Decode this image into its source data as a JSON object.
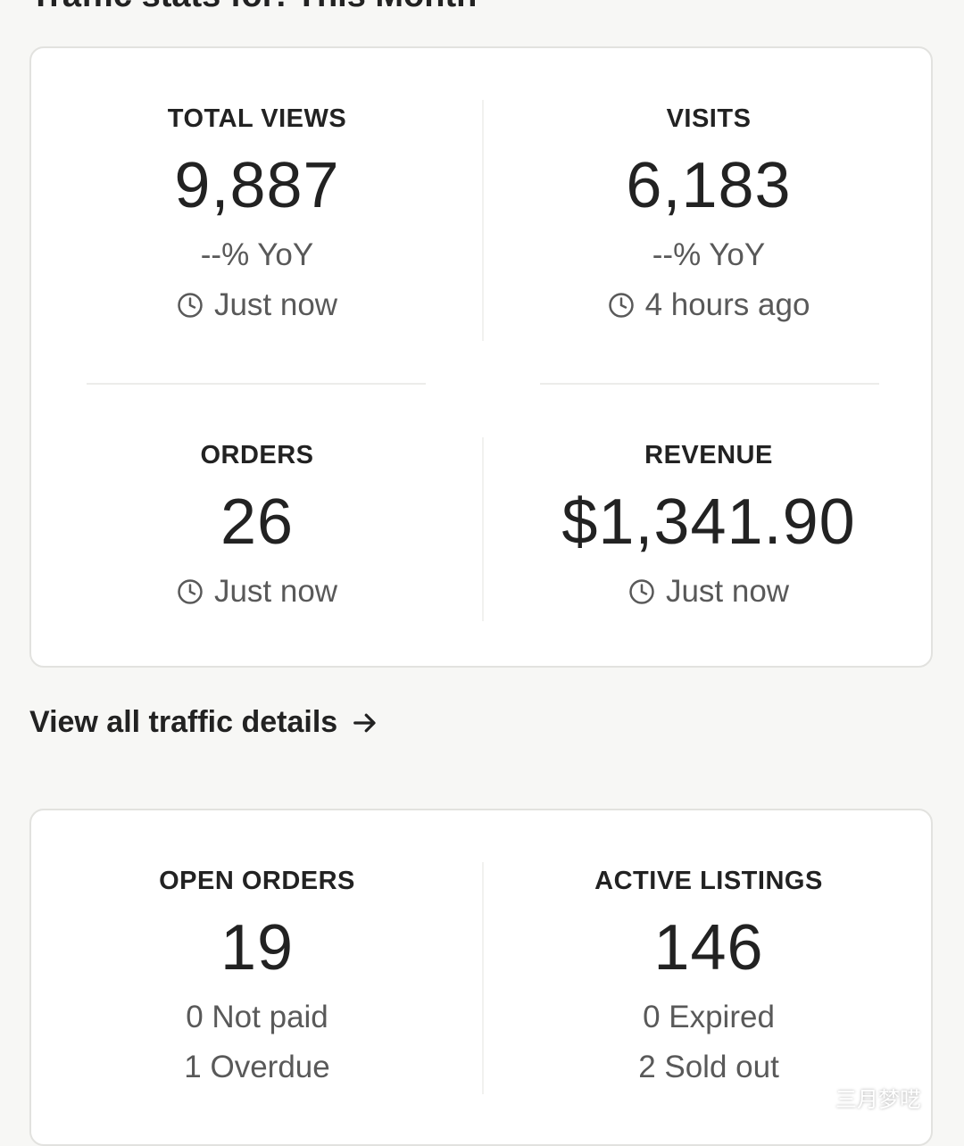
{
  "page": {
    "heading": "Traffic stats for: This Month"
  },
  "traffic_card": {
    "total_views": {
      "label": "TOTAL VIEWS",
      "value": "9,887",
      "yoy": "--% YoY",
      "updated": "Just now"
    },
    "visits": {
      "label": "VISITS",
      "value": "6,183",
      "yoy": "--% YoY",
      "updated": "4 hours ago"
    },
    "orders": {
      "label": "ORDERS",
      "value": "26",
      "updated": "Just now"
    },
    "revenue": {
      "label": "REVENUE",
      "value": "$1,341.90",
      "updated": "Just now"
    }
  },
  "traffic_link": {
    "label": "View all traffic details",
    "icon": "arrow-right-icon"
  },
  "orders_card": {
    "open_orders": {
      "label": "OPEN ORDERS",
      "value": "19",
      "line1": "0 Not paid",
      "line2": "1 Overdue"
    },
    "active_listings": {
      "label": "ACTIVE LISTINGS",
      "value": "146",
      "line1": "0 Expired",
      "line2": "2 Sold out"
    }
  },
  "watermark": {
    "text": "三月梦呓",
    "icon": "wechat-icon"
  },
  "colors": {
    "background": "#f7f7f5",
    "card": "#ffffff",
    "text": "#222222",
    "muted": "#595959"
  }
}
